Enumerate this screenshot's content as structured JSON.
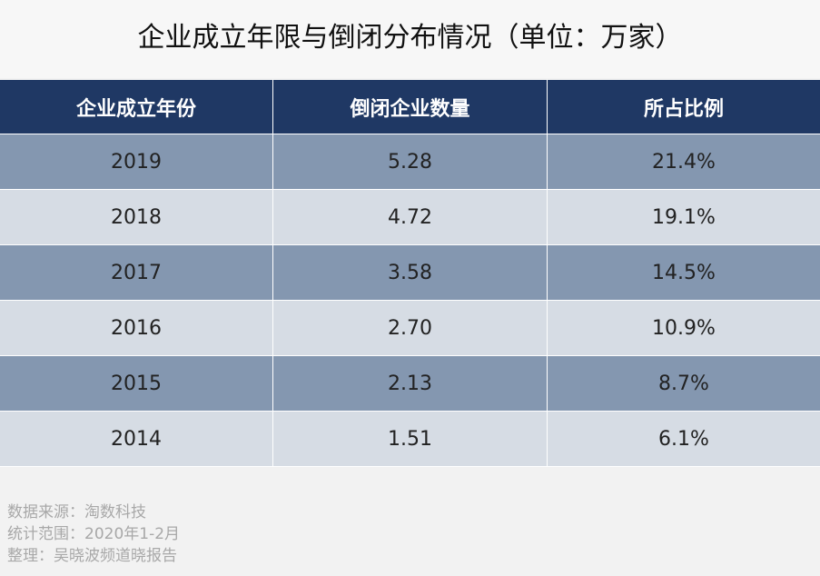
{
  "title": "企业成立年限与倒闭分布情况（单位：万家）",
  "table": {
    "header": [
      "企业成立年份",
      "倒闭企业数量",
      "所占比例"
    ],
    "rows": [
      [
        "2019",
        "5.28",
        "21.4%"
      ],
      [
        "2018",
        "4.72",
        "19.1%"
      ],
      [
        "2017",
        "3.58",
        "14.5%"
      ],
      [
        "2016",
        "2.70",
        "10.9%"
      ],
      [
        "2015",
        "2.13",
        "8.7%"
      ],
      [
        "2014",
        "1.51",
        "6.1%"
      ]
    ]
  },
  "notes": [
    "数据来源：淘数科技",
    "统计范围：2020年1-2月",
    "整理：吴晓波频道晓报告"
  ]
}
